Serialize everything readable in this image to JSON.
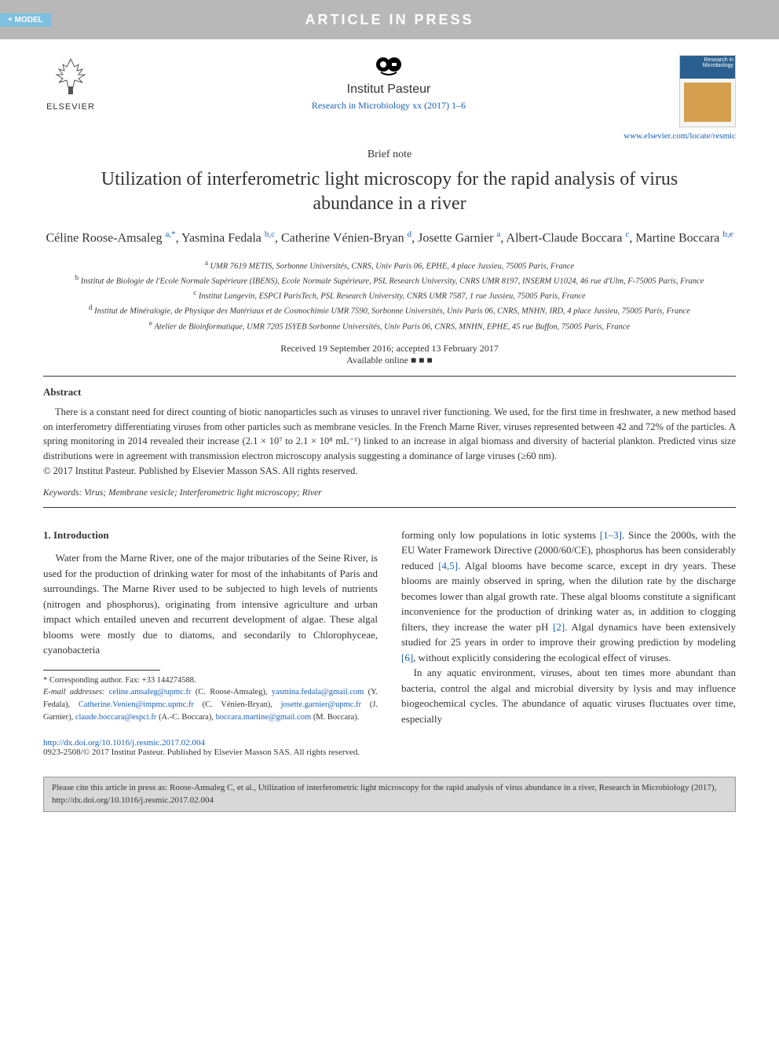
{
  "header": {
    "model_tag": "+ MODEL",
    "banner": "ARTICLE IN PRESS"
  },
  "publisher": {
    "elsevier": "ELSEVIER",
    "pasteur": "Institut Pasteur",
    "journal_ref": "Research in Microbiology xx (2017) 1–6",
    "locate_link": "www.elsevier.com/locate/resmic",
    "cover_label": "Research in Microbiology"
  },
  "article": {
    "type": "Brief note",
    "title": "Utilization of interferometric light microscopy for the rapid analysis of virus abundance in a river",
    "authors_html": "Céline Roose-Amsaleg <sup class='sup'>a,*</sup>, Yasmina Fedala <sup class='sup'>b,c</sup>, Catherine Vénien-Bryan <sup class='sup'>d</sup>, Josette Garnier <sup class='sup'>a</sup>, Albert-Claude Boccara <sup class='sup'>c</sup>, Martine Boccara <sup class='sup'>b,e</sup>",
    "affiliations": [
      {
        "sup": "a",
        "text": "UMR 7619 METIS, Sorbonne Universités, CNRS, Univ Paris 06, EPHE, 4 place Jussieu, 75005 Paris, France"
      },
      {
        "sup": "b",
        "text": "Institut de Biologie de l'Ecole Normale Supérieure (IBENS), Ecole Normale Supérieure, PSL Research University, CNRS UMR 8197, INSERM U1024, 46 rue d'Ulm, F-75005 Paris, France"
      },
      {
        "sup": "c",
        "text": "Institut Langevin, ESPCI ParisTech, PSL Research University, CNRS UMR 7587, 1 rue Jussieu, 75005 Paris, France"
      },
      {
        "sup": "d",
        "text": "Institut de Minéralogie, de Physique des Matériaux et de Cosmochimie UMR 7590, Sorbonne Universités, Univ Paris 06, CNRS, MNHN, IRD, 4 place Jussieu, 75005 Paris, France"
      },
      {
        "sup": "e",
        "text": "Atelier de Bioinformatique, UMR 7205 ISYEB Sorbonne Universités, Univ Paris 06, CNRS, MNHN, EPHE, 45 rue Buffon, 75005 Paris, France"
      }
    ],
    "received": "Received 19 September 2016; accepted 13 February 2017",
    "available": "Available online ■ ■ ■"
  },
  "abstract": {
    "heading": "Abstract",
    "text": "There is a constant need for direct counting of biotic nanoparticles such as viruses to unravel river functioning. We used, for the first time in freshwater, a new method based on interferometry differentiating viruses from other particles such as membrane vesicles. In the French Marne River, viruses represented between 42 and 72% of the particles. A spring monitoring in 2014 revealed their increase (2.1 × 10⁷ to 2.1 × 10⁸ mL⁻¹) linked to an increase in algal biomass and diversity of bacterial plankton. Predicted virus size distributions were in agreement with transmission electron microscopy analysis suggesting a dominance of large viruses (≥60 nm).",
    "copyright": "© 2017 Institut Pasteur. Published by Elsevier Masson SAS. All rights reserved.",
    "keywords_label": "Keywords:",
    "keywords": "Virus; Membrane vesicle; Interferometric light microscopy; River"
  },
  "body": {
    "section_heading": "1. Introduction",
    "col1_p1": "Water from the Marne River, one of the major tributaries of the Seine River, is used for the production of drinking water for most of the inhabitants of Paris and surroundings. The Marne River used to be subjected to high levels of nutrients (nitrogen and phosphorus), originating from intensive agriculture and urban impact which entailed uneven and recurrent development of algae. These algal blooms were mostly due to diatoms, and secondarily to Chlorophyceae, cyanobacteria",
    "col2_p1": "forming only low populations in lotic systems [1–3]. Since the 2000s, with the EU Water Framework Directive (2000/60/CE), phosphorus has been considerably reduced [4,5]. Algal blooms have become scarce, except in dry years. These blooms are mainly observed in spring, when the dilution rate by the discharge becomes lower than algal growth rate. These algal blooms constitute a significant inconvenience for the production of drinking water as, in addition to clogging filters, they increase the water pH [2]. Algal dynamics have been extensively studied for 25 years in order to improve their growing prediction by modeling [6], without explicitly considering the ecological effect of viruses.",
    "col2_p2": "In any aquatic environment, viruses, about ten times more abundant than bacteria, control the algal and microbial diversity by lysis and may influence biogeochemical cycles. The abundance of aquatic viruses fluctuates over time, especially",
    "refs": {
      "r1": "[1–3]",
      "r2": "[4,5]",
      "r3": "[2]",
      "r4": "[6]"
    }
  },
  "footnote": {
    "corresponding": "* Corresponding author. Fax: +33 144274588.",
    "email_label": "E-mail addresses:",
    "emails_html": "<span class='link'>celine.amsaleg@upmc.fr</span> (C. Roose-Amsaleg), <span class='link'>yasmina.fedala@gmail.com</span> (Y. Fedala), <span class='link'>Catherine.Venien@impmc.upmc.fr</span> (C. Vénien-Bryan), <span class='link'>josette.garnier@upmc.fr</span> (J. Garnier), <span class='link'>claude.boccara@espci.fr</span> (A.-C. Boccara), <span class='link'>boccara.martine@gmail.com</span> (M. Boccara)."
  },
  "footer": {
    "doi": "http://dx.doi.org/10.1016/j.resmic.2017.02.004",
    "issn_copyright": "0923-2508/© 2017 Institut Pasteur. Published by Elsevier Masson SAS. All rights reserved.",
    "cite": "Please cite this article in press as: Roose-Amsaleg C, et al., Utilization of interferometric light microscopy for the rapid analysis of virus abundance in a river, Research in Microbiology (2017), http://dx.doi.org/10.1016/j.resmic.2017.02.004"
  },
  "colors": {
    "link": "#1a5fb4",
    "header_bg": "#b8b8b8",
    "tag_bg": "#7fbfdf",
    "cite_bg": "#d8d8d8"
  }
}
